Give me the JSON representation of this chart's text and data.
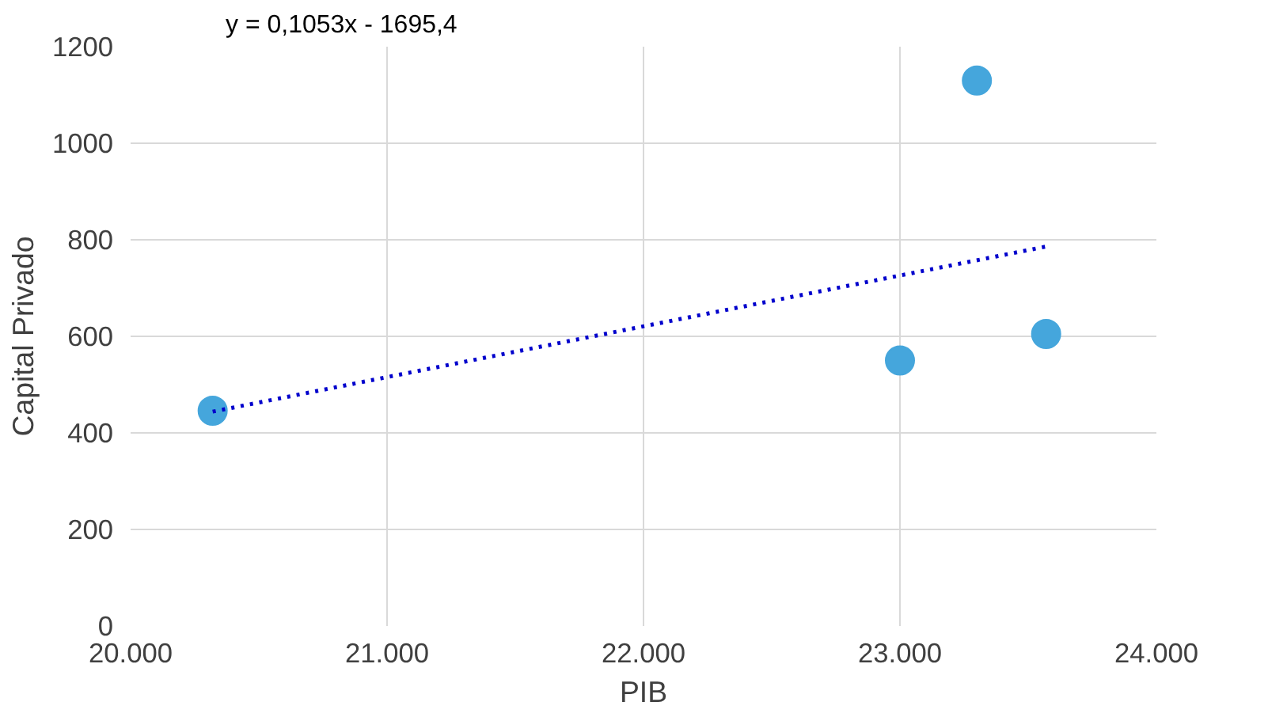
{
  "chart_data": {
    "type": "scatter",
    "xlabel": "PIB",
    "ylabel": "Capital Privado",
    "annotations": [
      "y = 0,1053x - 1695,4"
    ],
    "series": [
      {
        "color": "#45a6dc",
        "x": [
          20320,
          23000,
          23300,
          23570
        ],
        "values": [
          446,
          550,
          1130,
          605
        ],
        "marker": "circle"
      },
      {
        "type": "line",
        "color": "#0000cc",
        "x": [
          20320,
          23570
        ],
        "values": [
          444,
          786
        ],
        "line_style": "dotted",
        "marker": "none"
      }
    ],
    "xlim": [
      20000,
      24000
    ],
    "xticks": [
      {
        "value": 20000,
        "label": "20.000"
      },
      {
        "value": 21000,
        "label": "21.000"
      },
      {
        "value": 22000,
        "label": "22.000"
      },
      {
        "value": 23000,
        "label": "23.000"
      },
      {
        "value": 24000,
        "label": "24.000"
      }
    ],
    "ylim": [
      0,
      1200
    ],
    "yticks": [
      0,
      200,
      400,
      600,
      800,
      1000,
      1200
    ],
    "grid": true
  }
}
